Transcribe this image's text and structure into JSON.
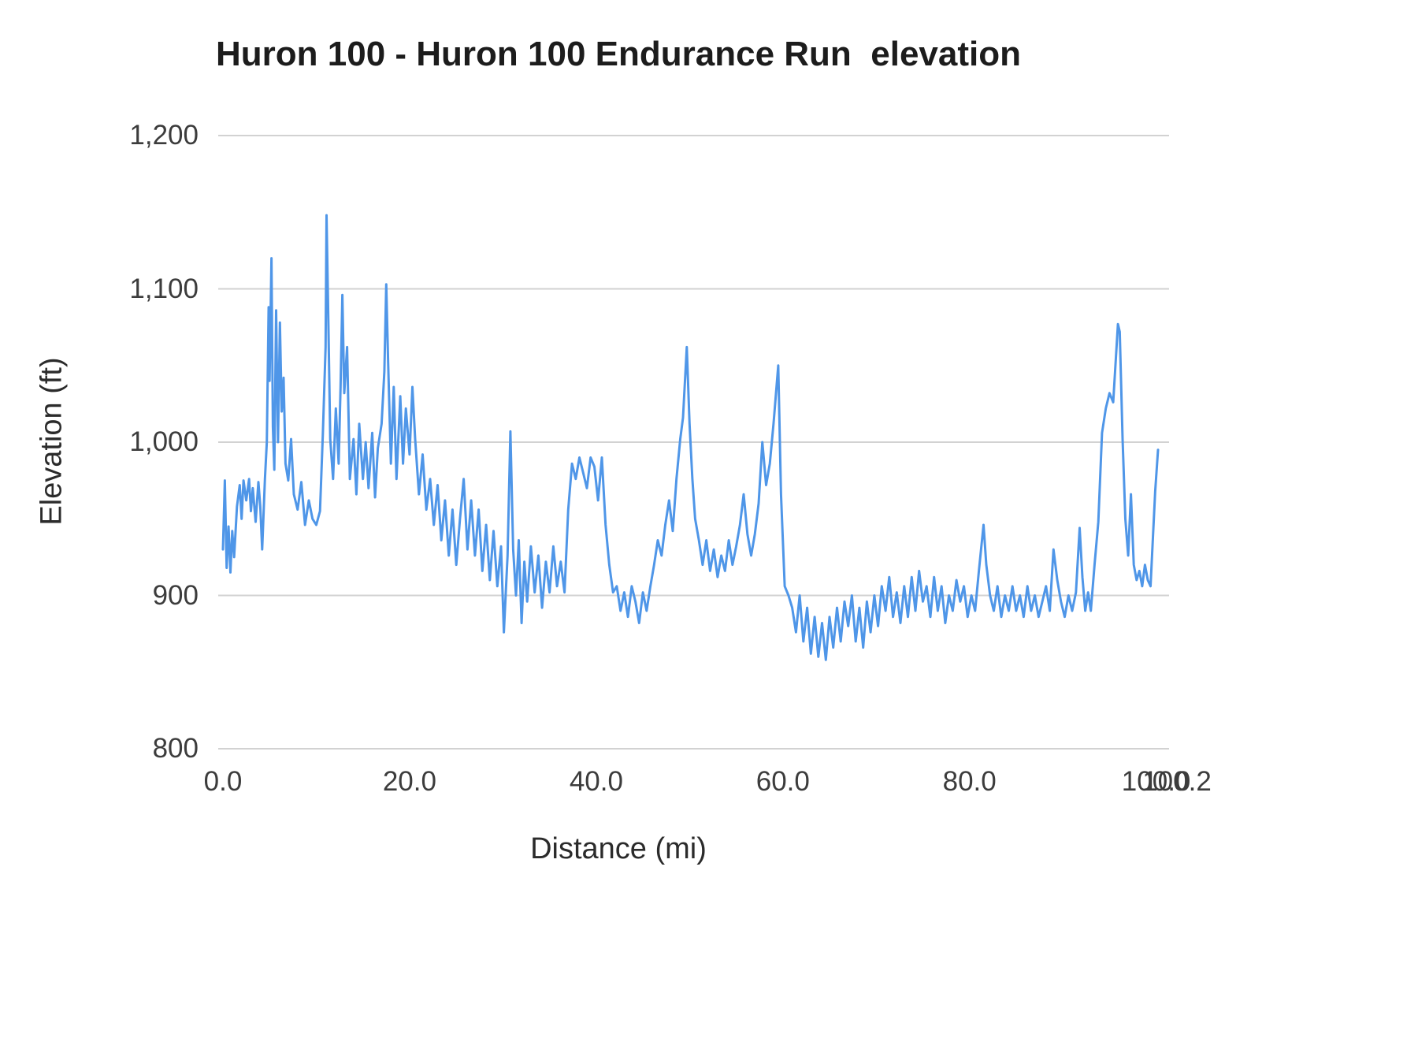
{
  "chart_data": {
    "type": "line",
    "title": "Huron 100 - Huron 100 Endurance Run  elevation",
    "xlabel": "Distance (mi)",
    "ylabel": "Elevation (ft)",
    "xlim": [
      0,
      100.2
    ],
    "ylim": [
      800,
      1200
    ],
    "grid": "horizontal",
    "legend": "none",
    "background": "#ffffff",
    "grid_color": "#d2d2d2",
    "line_color": "#4f96e8",
    "y_ticks": {
      "values": [
        800,
        900,
        1000,
        1100,
        1200
      ],
      "labels": [
        "800",
        "900",
        "1,000",
        "1,100",
        "1,200"
      ]
    },
    "x_ticks": {
      "values": [
        0,
        20,
        40,
        60,
        80,
        100
      ],
      "labels": [
        "0.0",
        "20.0",
        "40.0",
        "60.0",
        "80.0",
        "100.0"
      ],
      "end_label": "100.2"
    },
    "points": [
      [
        0,
        930
      ],
      [
        0.2,
        975
      ],
      [
        0.4,
        918
      ],
      [
        0.6,
        945
      ],
      [
        0.8,
        915
      ],
      [
        1,
        942
      ],
      [
        1.2,
        925
      ],
      [
        1.5,
        958
      ],
      [
        1.8,
        972
      ],
      [
        2,
        950
      ],
      [
        2.2,
        975
      ],
      [
        2.5,
        962
      ],
      [
        2.8,
        976
      ],
      [
        3,
        955
      ],
      [
        3.2,
        970
      ],
      [
        3.5,
        948
      ],
      [
        3.8,
        974
      ],
      [
        4,
        958
      ],
      [
        4.2,
        930
      ],
      [
        4.5,
        976
      ],
      [
        4.7,
        1000
      ],
      [
        4.9,
        1088
      ],
      [
        5,
        1040
      ],
      [
        5.2,
        1120
      ],
      [
        5.35,
        1010
      ],
      [
        5.5,
        982
      ],
      [
        5.7,
        1086
      ],
      [
        5.9,
        1000
      ],
      [
        6.1,
        1078
      ],
      [
        6.3,
        1020
      ],
      [
        6.5,
        1042
      ],
      [
        6.7,
        986
      ],
      [
        7,
        975
      ],
      [
        7.3,
        1002
      ],
      [
        7.6,
        966
      ],
      [
        8,
        956
      ],
      [
        8.4,
        974
      ],
      [
        8.8,
        946
      ],
      [
        9.2,
        962
      ],
      [
        9.6,
        950
      ],
      [
        10,
        946
      ],
      [
        10.4,
        955
      ],
      [
        10.7,
        1005
      ],
      [
        11,
        1062
      ],
      [
        11.1,
        1148
      ],
      [
        11.3,
        1076
      ],
      [
        11.5,
        1002
      ],
      [
        11.8,
        976
      ],
      [
        12.1,
        1022
      ],
      [
        12.4,
        986
      ],
      [
        12.6,
        1036
      ],
      [
        12.8,
        1096
      ],
      [
        13,
        1032
      ],
      [
        13.3,
        1062
      ],
      [
        13.6,
        976
      ],
      [
        14,
        1002
      ],
      [
        14.3,
        966
      ],
      [
        14.6,
        1012
      ],
      [
        15,
        976
      ],
      [
        15.3,
        1000
      ],
      [
        15.6,
        970
      ],
      [
        16,
        1006
      ],
      [
        16.3,
        964
      ],
      [
        16.6,
        996
      ],
      [
        17,
        1012
      ],
      [
        17.3,
        1046
      ],
      [
        17.5,
        1103
      ],
      [
        17.7,
        1052
      ],
      [
        18,
        986
      ],
      [
        18.3,
        1036
      ],
      [
        18.6,
        976
      ],
      [
        19,
        1030
      ],
      [
        19.3,
        986
      ],
      [
        19.6,
        1022
      ],
      [
        20,
        992
      ],
      [
        20.3,
        1036
      ],
      [
        20.6,
        1002
      ],
      [
        21,
        966
      ],
      [
        21.4,
        992
      ],
      [
        21.8,
        956
      ],
      [
        22.2,
        976
      ],
      [
        22.6,
        946
      ],
      [
        23,
        972
      ],
      [
        23.4,
        936
      ],
      [
        23.8,
        962
      ],
      [
        24.2,
        926
      ],
      [
        24.6,
        956
      ],
      [
        25,
        920
      ],
      [
        25.4,
        950
      ],
      [
        25.8,
        976
      ],
      [
        26.2,
        930
      ],
      [
        26.6,
        962
      ],
      [
        27,
        926
      ],
      [
        27.4,
        956
      ],
      [
        27.8,
        916
      ],
      [
        28.2,
        946
      ],
      [
        28.6,
        910
      ],
      [
        29,
        942
      ],
      [
        29.4,
        906
      ],
      [
        29.8,
        932
      ],
      [
        30.1,
        876
      ],
      [
        30.5,
        926
      ],
      [
        30.8,
        1007
      ],
      [
        31.1,
        930
      ],
      [
        31.4,
        900
      ],
      [
        31.7,
        936
      ],
      [
        32,
        882
      ],
      [
        32.3,
        922
      ],
      [
        32.6,
        896
      ],
      [
        33,
        932
      ],
      [
        33.4,
        902
      ],
      [
        33.8,
        926
      ],
      [
        34.2,
        892
      ],
      [
        34.6,
        922
      ],
      [
        35,
        902
      ],
      [
        35.4,
        932
      ],
      [
        35.8,
        906
      ],
      [
        36.2,
        922
      ],
      [
        36.6,
        902
      ],
      [
        37,
        956
      ],
      [
        37.4,
        986
      ],
      [
        37.8,
        976
      ],
      [
        38.2,
        990
      ],
      [
        38.6,
        980
      ],
      [
        39,
        970
      ],
      [
        39.4,
        990
      ],
      [
        39.8,
        984
      ],
      [
        40.2,
        962
      ],
      [
        40.6,
        990
      ],
      [
        41,
        946
      ],
      [
        41.4,
        920
      ],
      [
        41.8,
        902
      ],
      [
        42.2,
        906
      ],
      [
        42.6,
        890
      ],
      [
        43,
        902
      ],
      [
        43.4,
        886
      ],
      [
        43.8,
        906
      ],
      [
        44.2,
        896
      ],
      [
        44.6,
        882
      ],
      [
        45,
        902
      ],
      [
        45.4,
        890
      ],
      [
        45.8,
        906
      ],
      [
        46.2,
        920
      ],
      [
        46.6,
        936
      ],
      [
        47,
        926
      ],
      [
        47.4,
        946
      ],
      [
        47.8,
        962
      ],
      [
        48.2,
        942
      ],
      [
        48.6,
        976
      ],
      [
        49,
        1002
      ],
      [
        49.3,
        1016
      ],
      [
        49.7,
        1062
      ],
      [
        50,
        1012
      ],
      [
        50.3,
        976
      ],
      [
        50.6,
        950
      ],
      [
        51,
        936
      ],
      [
        51.4,
        920
      ],
      [
        51.8,
        936
      ],
      [
        52.2,
        916
      ],
      [
        52.6,
        930
      ],
      [
        53,
        912
      ],
      [
        53.4,
        926
      ],
      [
        53.8,
        916
      ],
      [
        54.2,
        936
      ],
      [
        54.6,
        920
      ],
      [
        55,
        932
      ],
      [
        55.4,
        946
      ],
      [
        55.8,
        966
      ],
      [
        56.2,
        940
      ],
      [
        56.6,
        926
      ],
      [
        57,
        940
      ],
      [
        57.4,
        960
      ],
      [
        57.8,
        1000
      ],
      [
        58.2,
        972
      ],
      [
        58.6,
        986
      ],
      [
        59,
        1012
      ],
      [
        59.5,
        1050
      ],
      [
        59.8,
        966
      ],
      [
        60.2,
        906
      ],
      [
        60.6,
        900
      ],
      [
        61,
        892
      ],
      [
        61.4,
        876
      ],
      [
        61.8,
        900
      ],
      [
        62.2,
        870
      ],
      [
        62.6,
        892
      ],
      [
        63,
        862
      ],
      [
        63.4,
        886
      ],
      [
        63.8,
        860
      ],
      [
        64.2,
        882
      ],
      [
        64.6,
        858
      ],
      [
        65,
        886
      ],
      [
        65.4,
        866
      ],
      [
        65.8,
        892
      ],
      [
        66.2,
        870
      ],
      [
        66.6,
        896
      ],
      [
        67,
        880
      ],
      [
        67.4,
        900
      ],
      [
        67.8,
        870
      ],
      [
        68.2,
        892
      ],
      [
        68.6,
        866
      ],
      [
        69,
        896
      ],
      [
        69.4,
        876
      ],
      [
        69.8,
        900
      ],
      [
        70.2,
        880
      ],
      [
        70.6,
        906
      ],
      [
        71,
        890
      ],
      [
        71.4,
        912
      ],
      [
        71.8,
        886
      ],
      [
        72.2,
        902
      ],
      [
        72.6,
        882
      ],
      [
        73,
        906
      ],
      [
        73.4,
        886
      ],
      [
        73.8,
        912
      ],
      [
        74.2,
        890
      ],
      [
        74.6,
        916
      ],
      [
        75,
        896
      ],
      [
        75.4,
        906
      ],
      [
        75.8,
        886
      ],
      [
        76.2,
        912
      ],
      [
        76.6,
        890
      ],
      [
        77,
        906
      ],
      [
        77.4,
        882
      ],
      [
        77.8,
        900
      ],
      [
        78.2,
        890
      ],
      [
        78.6,
        910
      ],
      [
        79,
        896
      ],
      [
        79.4,
        906
      ],
      [
        79.8,
        886
      ],
      [
        80.2,
        900
      ],
      [
        80.6,
        890
      ],
      [
        81,
        916
      ],
      [
        81.5,
        946
      ],
      [
        81.8,
        920
      ],
      [
        82.2,
        900
      ],
      [
        82.6,
        890
      ],
      [
        83,
        906
      ],
      [
        83.4,
        886
      ],
      [
        83.8,
        900
      ],
      [
        84.2,
        890
      ],
      [
        84.6,
        906
      ],
      [
        85,
        890
      ],
      [
        85.4,
        900
      ],
      [
        85.8,
        886
      ],
      [
        86.2,
        906
      ],
      [
        86.6,
        890
      ],
      [
        87,
        900
      ],
      [
        87.4,
        886
      ],
      [
        87.8,
        896
      ],
      [
        88.2,
        906
      ],
      [
        88.6,
        890
      ],
      [
        89,
        930
      ],
      [
        89.4,
        910
      ],
      [
        89.8,
        896
      ],
      [
        90.2,
        886
      ],
      [
        90.6,
        900
      ],
      [
        91,
        890
      ],
      [
        91.4,
        902
      ],
      [
        91.8,
        944
      ],
      [
        92.1,
        912
      ],
      [
        92.4,
        890
      ],
      [
        92.7,
        902
      ],
      [
        93,
        890
      ],
      [
        93.4,
        920
      ],
      [
        93.8,
        948
      ],
      [
        94.2,
        1006
      ],
      [
        94.6,
        1022
      ],
      [
        95,
        1032
      ],
      [
        95.4,
        1026
      ],
      [
        95.9,
        1077
      ],
      [
        96.1,
        1072
      ],
      [
        96.4,
        1002
      ],
      [
        96.7,
        950
      ],
      [
        97,
        926
      ],
      [
        97.3,
        966
      ],
      [
        97.6,
        920
      ],
      [
        97.9,
        910
      ],
      [
        98.2,
        916
      ],
      [
        98.5,
        906
      ],
      [
        98.8,
        920
      ],
      [
        99.1,
        910
      ],
      [
        99.4,
        906
      ],
      [
        99.7,
        944
      ],
      [
        99.9,
        968
      ],
      [
        100.2,
        995
      ]
    ]
  }
}
